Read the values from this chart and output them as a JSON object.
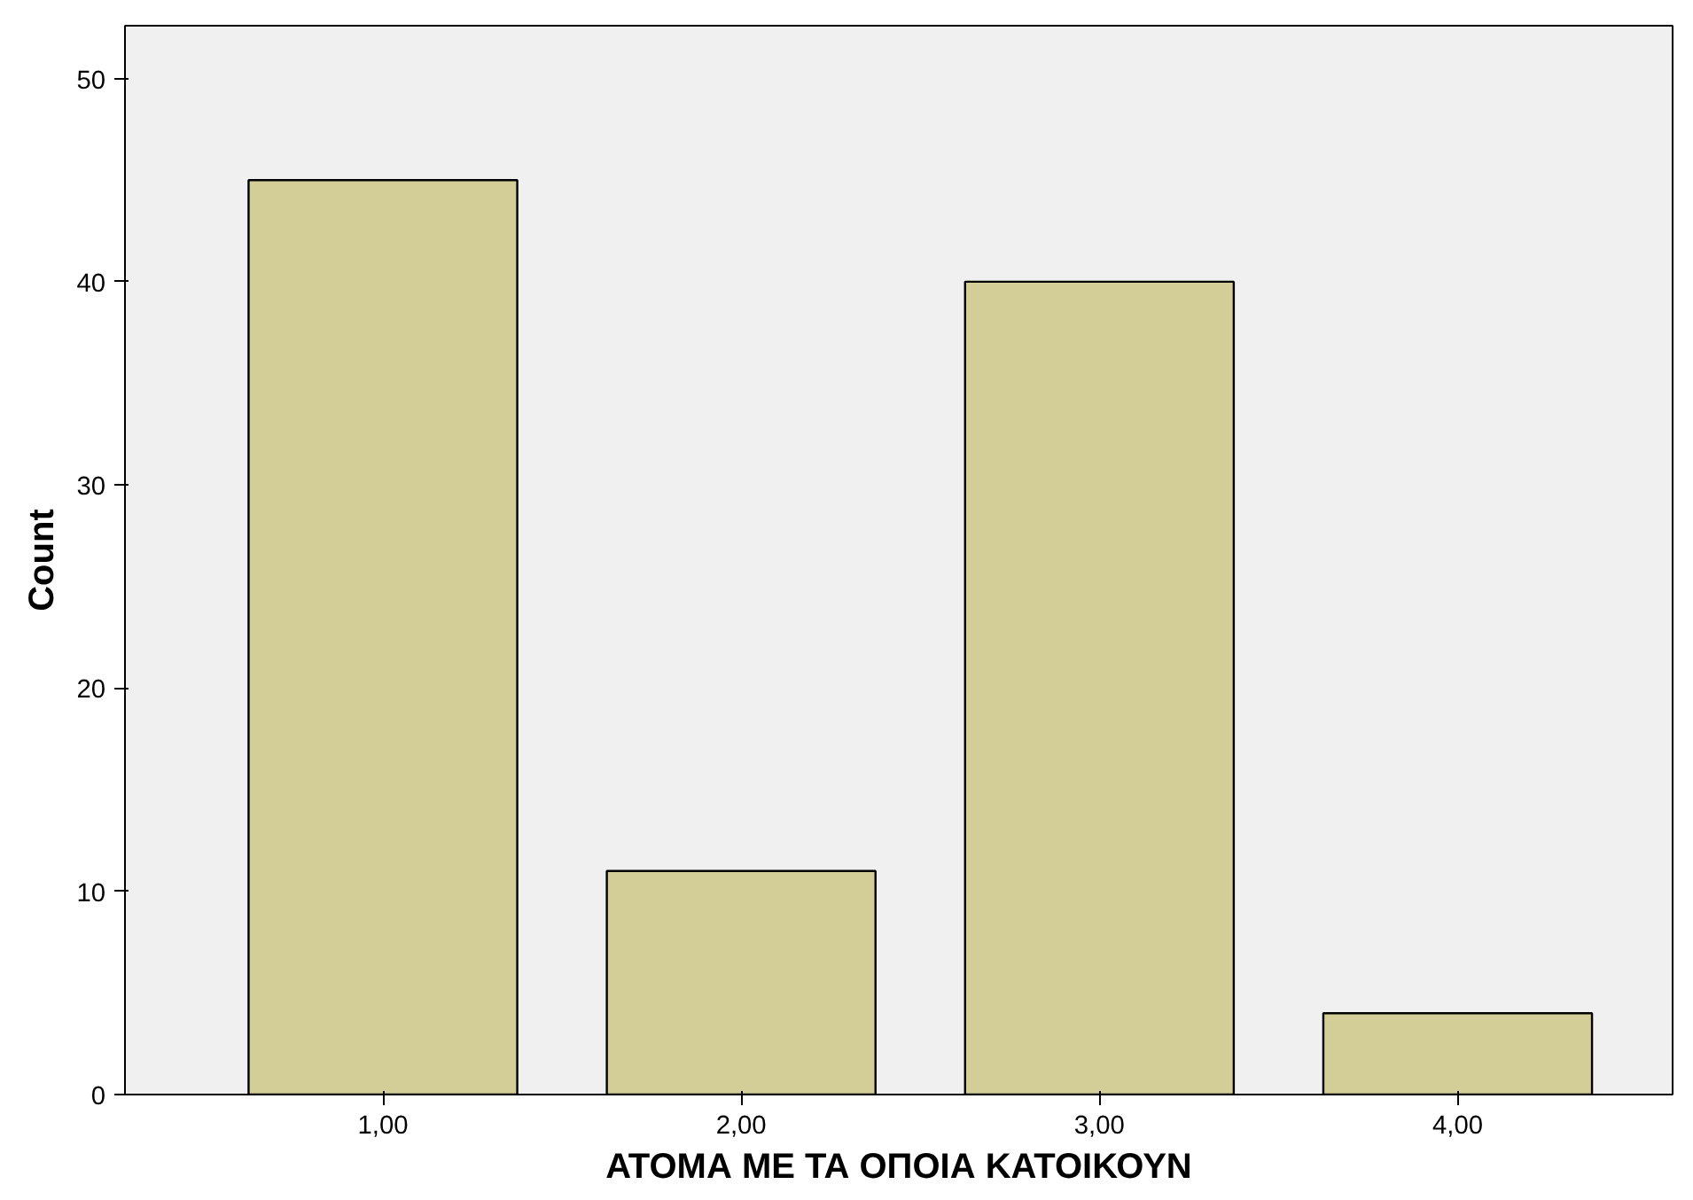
{
  "chart_data": {
    "type": "bar",
    "categories": [
      "1,00",
      "2,00",
      "3,00",
      "4,00"
    ],
    "values": [
      45,
      11,
      40,
      4
    ],
    "color": "#d3ce97",
    "xlabel": "ΑΤΟΜΑ ΜΕ ΤΑ ΟΠΟΙΑ ΚΑΤΟΙΚΟΥΝ",
    "ylabel": "Count",
    "ylim": [
      0,
      52.6
    ],
    "yticks": [
      0,
      10,
      20,
      30,
      40,
      50
    ],
    "grid": false
  }
}
